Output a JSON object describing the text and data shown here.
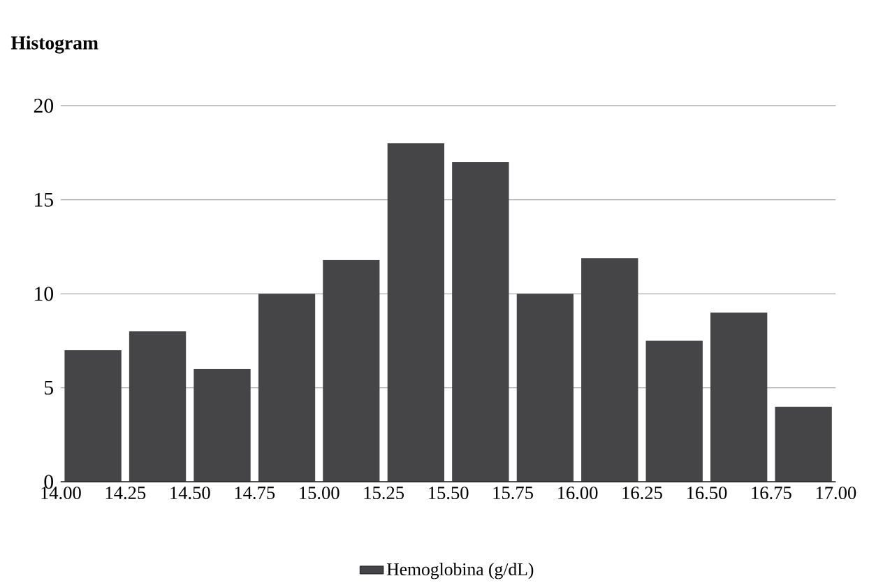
{
  "chart_data": {
    "type": "histogram",
    "title": "Histogram",
    "bins": [
      14.0,
      14.25,
      14.5,
      14.75,
      15.0,
      15.25,
      15.5,
      15.75,
      16.0,
      16.25,
      16.5,
      16.75,
      17.0
    ],
    "series": [
      {
        "name": "Hemoglobina (g/dL)",
        "color": "#454547",
        "values": [
          7,
          8,
          6,
          10,
          11.8,
          18,
          17,
          10,
          11.9,
          7.5,
          9,
          4
        ]
      }
    ],
    "xlim": [
      14.0,
      17.0
    ],
    "xticks": [
      {
        "value": 14.0,
        "label": "14.00"
      },
      {
        "value": 14.25,
        "label": "14.25"
      },
      {
        "value": 14.5,
        "label": "14.50"
      },
      {
        "value": 14.75,
        "label": "14.75"
      },
      {
        "value": 15.0,
        "label": "15.00"
      },
      {
        "value": 15.25,
        "label": "15.25"
      },
      {
        "value": 15.5,
        "label": "15.50"
      },
      {
        "value": 15.75,
        "label": "15.75"
      },
      {
        "value": 16.0,
        "label": "16.00"
      },
      {
        "value": 16.25,
        "label": "16.25"
      },
      {
        "value": 16.5,
        "label": "16.50"
      },
      {
        "value": 16.75,
        "label": "16.75"
      },
      {
        "value": 17.0,
        "label": "17.00"
      }
    ],
    "ylim": [
      0,
      20
    ],
    "yticks": [
      0,
      5,
      10,
      15,
      20
    ],
    "grid": "y",
    "legend": "bottom"
  }
}
